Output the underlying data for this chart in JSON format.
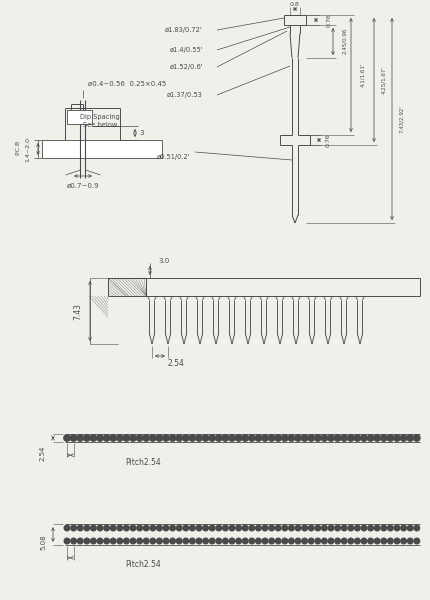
{
  "bg_color": "#f0f0eb",
  "line_color": "#4a4a4a",
  "dim_color": "#4a4a4a",
  "s1": {
    "pin_dia": "ø0.4~0.56  0.25×0.45",
    "hole_dia": "ø0.7~0.9",
    "pcb_thick": "1.4~2.0",
    "dip_spacing": "Dip Spacing",
    "see_below": "See below",
    "dim3": "3"
  },
  "s2": {
    "d1": "ø1.83/0.72'",
    "d2": "ø1.4/0.55'",
    "d3": "ø1.52/0.6'",
    "d4": "ø1.37/0.53",
    "d5": "ø0.51/0.2'",
    "w1": "0.8",
    "top_h": "0.76",
    "h1": "2.45/0.96",
    "h2": "4.1/1.61'",
    "h3": "4.25/1.67'",
    "h4": "7.43/2.92'",
    "flange_h": "0.76"
  },
  "s3": {
    "height": "7.43",
    "top_dim": "3.0",
    "pitch": "2.54"
  },
  "s4": {
    "pitch_label": "Pitch2.54",
    "row_spacing": "2.54"
  },
  "s5": {
    "pitch_label": "Pitch2.54",
    "row_spacing": "5.08"
  }
}
